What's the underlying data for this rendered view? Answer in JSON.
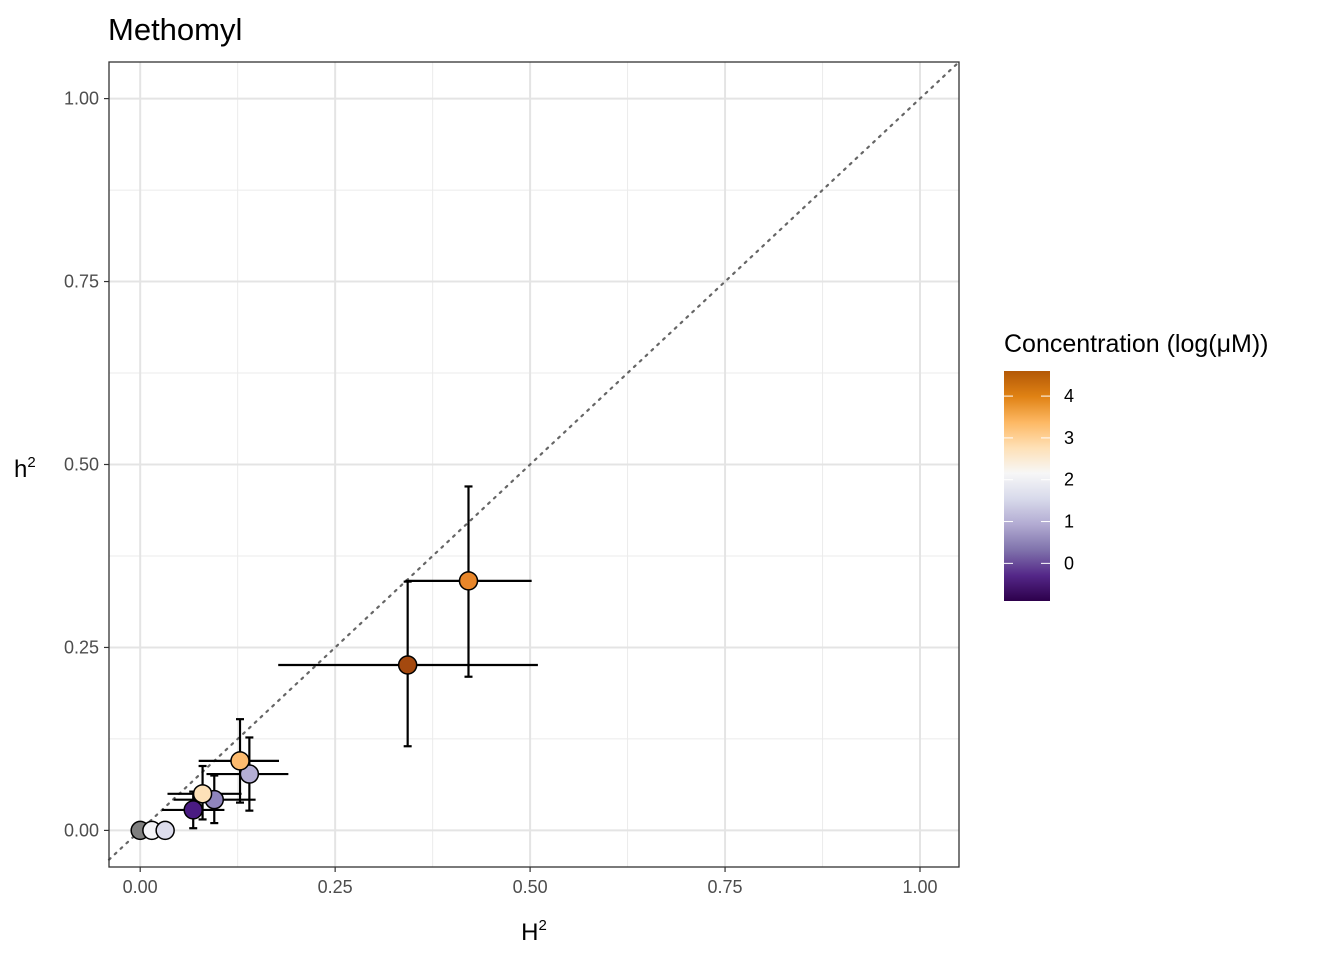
{
  "chart_data": {
    "type": "scatter",
    "title": "Methomyl",
    "xlabel": "H",
    "ylabel": "h",
    "label_superscript": "2",
    "xlim": [
      -0.04,
      1.05
    ],
    "ylim": [
      -0.05,
      1.05
    ],
    "x_ticks": [
      0,
      0.25,
      0.5,
      0.75,
      1
    ],
    "y_ticks": [
      0,
      0.25,
      0.5,
      0.75,
      1
    ],
    "x_tick_labels": [
      "0.00",
      "0.25",
      "0.50",
      "0.75",
      "1.00"
    ],
    "y_tick_labels": [
      "0.00",
      "0.25",
      "0.50",
      "0.75",
      "1.00"
    ],
    "grid": true,
    "reference_line": {
      "slope": 1,
      "intercept": 0,
      "style": "dotted"
    },
    "legend": {
      "title": "Concentration (log(μM))",
      "placement": "right",
      "type": "colorbar",
      "range": [
        -0.9,
        4.6
      ],
      "ticks": [
        0,
        1,
        2,
        3,
        4
      ],
      "tick_labels": [
        "0",
        "1",
        "2",
        "3",
        "4"
      ],
      "colors": [
        "#2d004b",
        "#542788",
        "#8073ac",
        "#b2abd2",
        "#d8daeb",
        "#f7f7f7",
        "#fee0b6",
        "#fdb863",
        "#e08214",
        "#b35806"
      ]
    },
    "points": [
      {
        "x": 0.0,
        "y": 0.0,
        "color": "#7f7f7f"
      },
      {
        "x": 0.015,
        "y": 0.0,
        "color": "#f4f4f8"
      },
      {
        "x": 0.032,
        "y": 0.0,
        "color": "#dcdcec"
      },
      {
        "x": 0.068,
        "y": 0.028,
        "xerr": [
          0.028,
          0.108
        ],
        "yerr": [
          0.003,
          0.053
        ],
        "color": "#4a1b82"
      },
      {
        "x": 0.095,
        "y": 0.042,
        "xerr": [
          0.043,
          0.148
        ],
        "yerr": [
          0.01,
          0.075
        ],
        "color": "#8f85bd"
      },
      {
        "x": 0.08,
        "y": 0.05,
        "xerr": [
          0.035,
          0.13
        ],
        "yerr": [
          0.015,
          0.088
        ],
        "color": "#fde1b8"
      },
      {
        "x": 0.14,
        "y": 0.077,
        "xerr": [
          0.085,
          0.19
        ],
        "yerr": [
          0.027,
          0.127
        ],
        "color": "#b4aed4"
      },
      {
        "x": 0.128,
        "y": 0.095,
        "xerr": [
          0.075,
          0.178
        ],
        "yerr": [
          0.038,
          0.152
        ],
        "color": "#fdbb6f"
      },
      {
        "x": 0.343,
        "y": 0.226,
        "xerr": [
          0.177,
          0.51
        ],
        "yerr": [
          0.115,
          0.34
        ],
        "color": "#a4490f"
      },
      {
        "x": 0.421,
        "y": 0.341,
        "xerr": [
          0.34,
          0.502
        ],
        "yerr": [
          0.21,
          0.47
        ],
        "color": "#e8862a"
      }
    ]
  }
}
